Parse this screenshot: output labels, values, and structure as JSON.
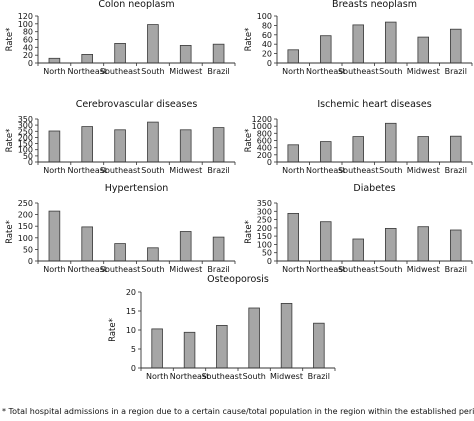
{
  "footnote": "* Total hospital admissions in a region due to a certain cause/total population in the region within the established period.",
  "chart_data": [
    {
      "type": "bar",
      "title": "Colon neoplasm",
      "ylabel": "Rate*",
      "categories": [
        "North",
        "Northeast",
        "Southeast",
        "South",
        "Midwest",
        "Brazil"
      ],
      "values": [
        12,
        22,
        50,
        98,
        45,
        48
      ],
      "ylim": [
        0,
        120
      ],
      "yticks": [
        0,
        20,
        40,
        60,
        80,
        100,
        120
      ],
      "grid": false
    },
    {
      "type": "bar",
      "title": "Breasts neoplasm",
      "ylabel": "Rate*",
      "categories": [
        "North",
        "Northeast",
        "Southeast",
        "South",
        "Midwest",
        "Brazil"
      ],
      "values": [
        28,
        58,
        81,
        87,
        55,
        72
      ],
      "ylim": [
        0,
        100
      ],
      "yticks": [
        0,
        20,
        40,
        60,
        80,
        100
      ],
      "grid": false
    },
    {
      "type": "bar",
      "title": "Cerebrovascular diseases",
      "ylabel": "Rate*",
      "categories": [
        "North",
        "Northeast",
        "Southeast",
        "South",
        "Midwest",
        "Brazil"
      ],
      "values": [
        252,
        288,
        262,
        325,
        262,
        280
      ],
      "ylim": [
        0,
        350
      ],
      "yticks": [
        0,
        50,
        100,
        150,
        200,
        250,
        300,
        350
      ],
      "grid": false
    },
    {
      "type": "bar",
      "title": "Ischemic heart diseases",
      "ylabel": "Rate*",
      "categories": [
        "North",
        "Northeast",
        "Southeast",
        "South",
        "Midwest",
        "Brazil"
      ],
      "values": [
        480,
        570,
        710,
        1080,
        710,
        720
      ],
      "ylim": [
        0,
        1200
      ],
      "yticks": [
        0,
        200,
        400,
        600,
        800,
        1000,
        1200
      ],
      "grid": false
    },
    {
      "type": "bar",
      "title": "Hypertension",
      "ylabel": "Rate*",
      "categories": [
        "North",
        "Northeast",
        "Southeast",
        "South",
        "Midwest",
        "Brazil"
      ],
      "values": [
        215,
        147,
        75,
        57,
        127,
        103
      ],
      "ylim": [
        0,
        250
      ],
      "yticks": [
        0,
        50,
        100,
        150,
        200,
        250
      ],
      "grid": false
    },
    {
      "type": "bar",
      "title": "Diabetes",
      "ylabel": "Rate*",
      "categories": [
        "North",
        "Northeast",
        "Southeast",
        "South",
        "Midwest",
        "Brazil"
      ],
      "values": [
        287,
        237,
        133,
        197,
        207,
        187
      ],
      "ylim": [
        0,
        350
      ],
      "yticks": [
        0,
        50,
        100,
        150,
        200,
        250,
        300,
        350
      ],
      "grid": false
    },
    {
      "type": "bar",
      "title": "Osteoporosis",
      "ylabel": "Rate*",
      "categories": [
        "North",
        "Northeast",
        "Southeast",
        "South",
        "Midwest",
        "Brazil"
      ],
      "values": [
        10.3,
        9.4,
        11.2,
        15.8,
        17.0,
        11.8
      ],
      "ylim": [
        0,
        20
      ],
      "yticks": [
        0,
        5,
        10,
        15,
        20
      ],
      "grid": false
    }
  ],
  "colors": {
    "bar_fill": "#a6a6a6",
    "bar_stroke": "#3a3a3a",
    "axis": "#333333",
    "text": "#111111"
  }
}
